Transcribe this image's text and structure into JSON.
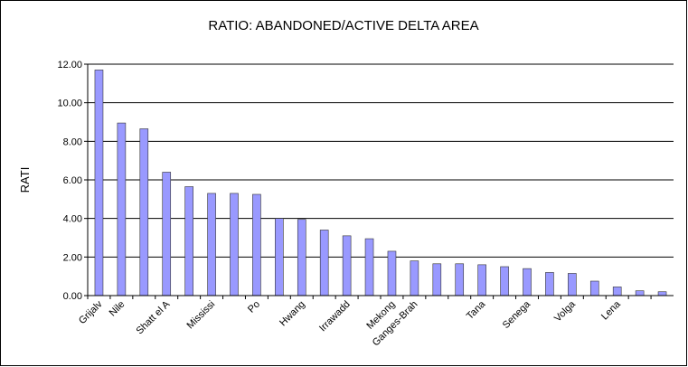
{
  "chart_data": {
    "type": "bar",
    "title": "RATIO: ABANDONED/ACTIVE DELTA AREA",
    "y_label": "RATI",
    "categories": [
      "Grijalv",
      "Nile",
      null,
      "Shatt el A",
      null,
      "Mississi",
      null,
      "Po",
      null,
      "Hwang",
      null,
      "Irrawadd",
      null,
      "Mekong",
      "Ganges-Brah",
      null,
      null,
      "Tana",
      null,
      "Senega",
      null,
      "Volga",
      null,
      "Lena",
      null,
      null
    ],
    "values": [
      11.7,
      8.95,
      8.65,
      6.4,
      5.65,
      5.3,
      5.3,
      5.25,
      4.0,
      3.95,
      3.4,
      3.1,
      2.95,
      2.3,
      1.8,
      1.65,
      1.65,
      1.6,
      1.5,
      1.4,
      1.2,
      1.15,
      0.75,
      0.45,
      0.25,
      0.2
    ],
    "color": "#9999ff",
    "ylim": [
      0,
      12
    ],
    "yticks": [
      {
        "value": 0,
        "label": "0.00"
      },
      {
        "value": 2,
        "label": "2.00"
      },
      {
        "value": 4,
        "label": "4.00"
      },
      {
        "value": 6,
        "label": "6.00"
      },
      {
        "value": 8,
        "label": "8.00"
      },
      {
        "value": 10,
        "label": "10.00"
      },
      {
        "value": 12,
        "label": "12.00"
      }
    ],
    "grid": true
  }
}
